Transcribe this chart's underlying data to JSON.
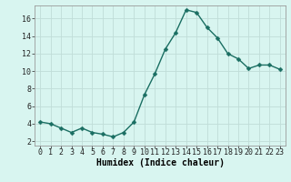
{
  "x": [
    0,
    1,
    2,
    3,
    4,
    5,
    6,
    7,
    8,
    9,
    10,
    11,
    12,
    13,
    14,
    15,
    16,
    17,
    18,
    19,
    20,
    21,
    22,
    23
  ],
  "y": [
    4.2,
    4.0,
    3.5,
    3.0,
    3.5,
    3.0,
    2.8,
    2.5,
    3.0,
    4.2,
    7.3,
    9.7,
    12.5,
    14.4,
    17.0,
    16.7,
    15.0,
    13.8,
    12.0,
    11.4,
    10.3,
    10.7,
    10.7,
    10.2
  ],
  "xlabel": "Humidex (Indice chaleur)",
  "line_color": "#1a6e62",
  "marker_color": "#1a6e62",
  "bg_color": "#d8f5f0",
  "plot_bg_color": "#d8f5f0",
  "grid_color": "#c0ddd8",
  "xlim": [
    -0.5,
    23.5
  ],
  "ylim": [
    1.5,
    17.5
  ],
  "yticks": [
    2,
    4,
    6,
    8,
    10,
    12,
    14,
    16
  ],
  "xticks": [
    0,
    1,
    2,
    3,
    4,
    5,
    6,
    7,
    8,
    9,
    10,
    11,
    12,
    13,
    14,
    15,
    16,
    17,
    18,
    19,
    20,
    21,
    22,
    23
  ],
  "xtick_labels": [
    "0",
    "1",
    "2",
    "3",
    "4",
    "5",
    "6",
    "7",
    "8",
    "9",
    "10",
    "11",
    "12",
    "13",
    "14",
    "15",
    "16",
    "17",
    "18",
    "19",
    "20",
    "21",
    "22",
    "23"
  ],
  "xlabel_fontsize": 7,
  "tick_fontsize": 6,
  "linewidth": 1.0,
  "markersize": 2.5
}
